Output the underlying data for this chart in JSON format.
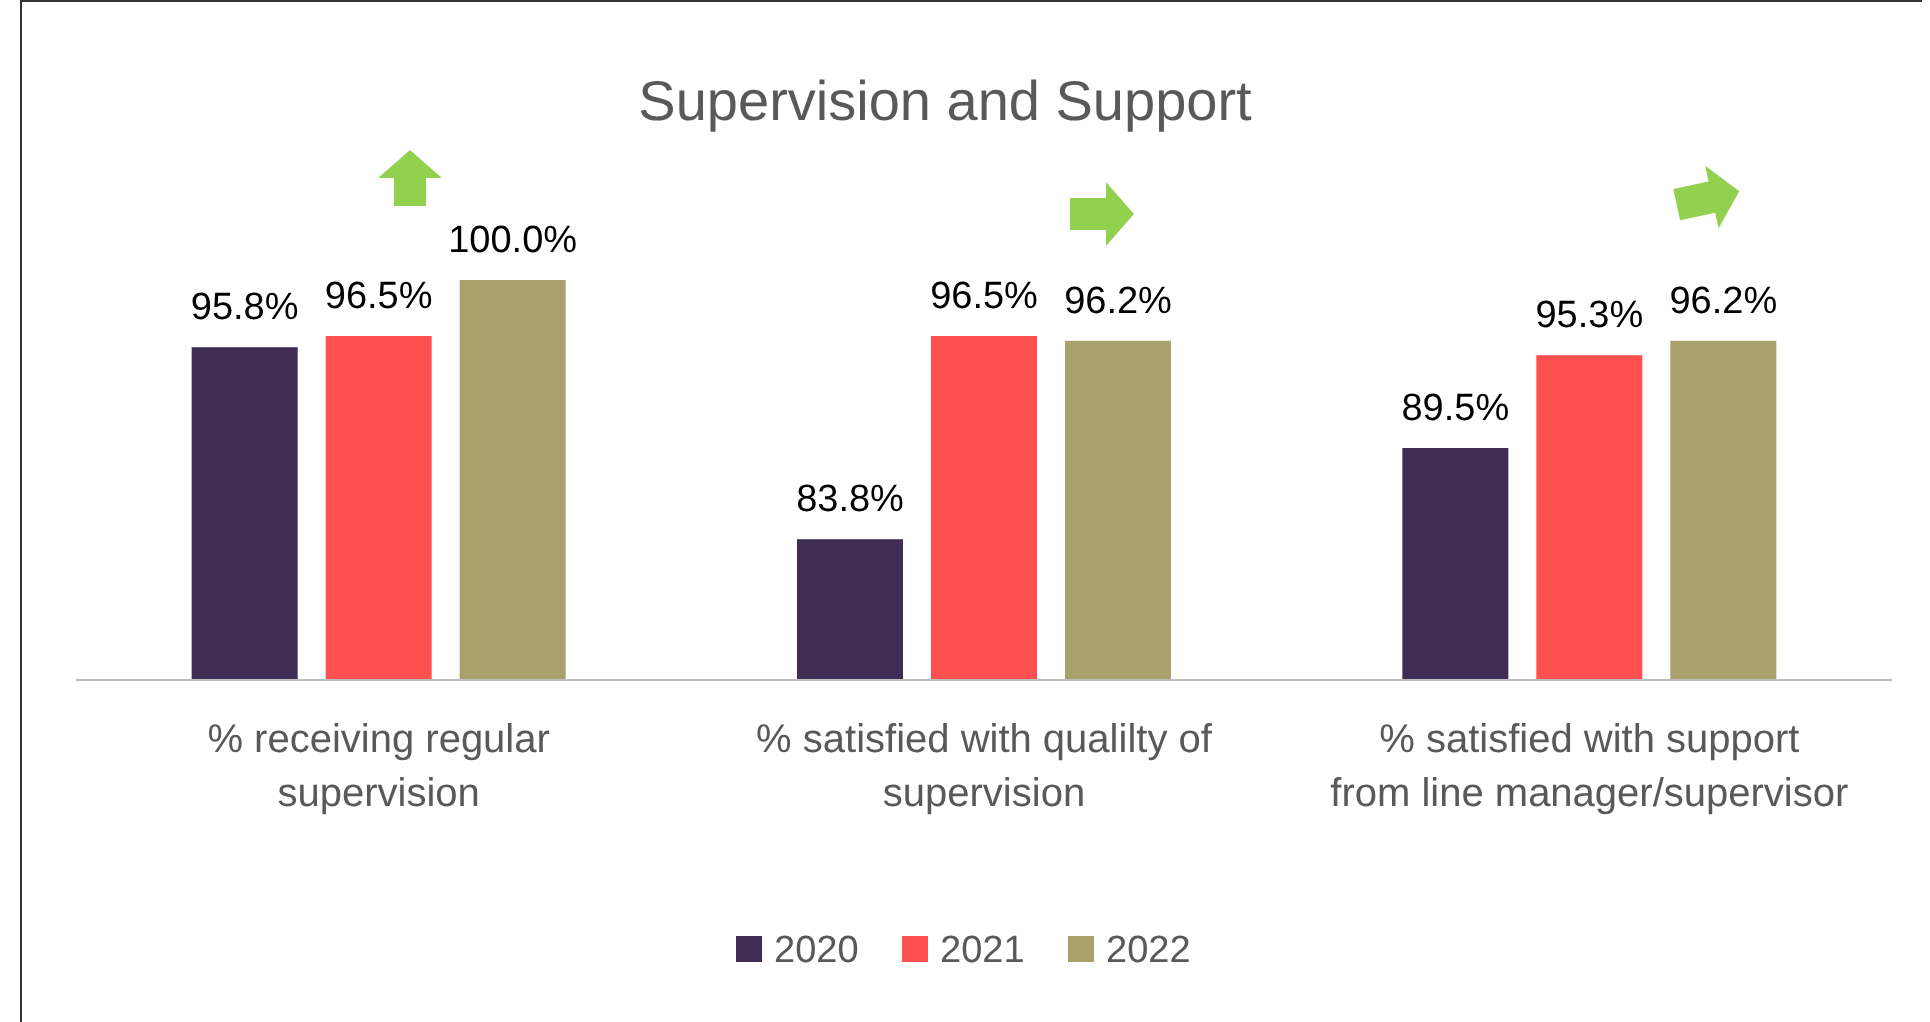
{
  "chart_data": {
    "type": "bar",
    "title": "Supervision and Support",
    "categories": [
      "% receiving regular supervision",
      "% satisfied with qualilty of supervision",
      "% satisfied with support from line manager/supervisor"
    ],
    "series": [
      {
        "name": "2020",
        "color": "#3f2d56",
        "values": [
          95.8,
          83.8,
          89.5
        ],
        "value_labels": [
          "95.8%",
          "83.8%",
          "89.5%"
        ]
      },
      {
        "name": "2021",
        "color": "#ff5050",
        "values": [
          96.5,
          96.5,
          95.3
        ],
        "value_labels": [
          "96.5%",
          "96.5%",
          "95.3%"
        ]
      },
      {
        "name": "2022",
        "color": "#a9a16c",
        "values": [
          100,
          96.2,
          96.2
        ],
        "value_labels": [
          "100.0%",
          "96.2%",
          "96.2%"
        ]
      }
    ],
    "ylim": [
      75,
      100
    ],
    "legend": "bottom",
    "grid": false
  }
}
